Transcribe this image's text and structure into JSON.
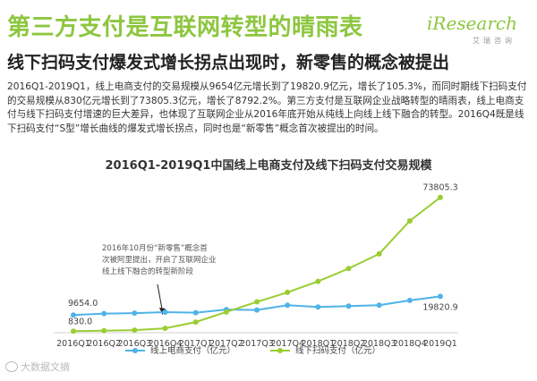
{
  "header": {
    "headline": "第三方支付是互联网转型的晴雨表",
    "subheadline": "线下扫码支付爆发式增长拐点出现时，新零售的概念被提出",
    "logo_word": "iResearch",
    "logo_sub": "艾瑞咨询"
  },
  "paragraph": "2016Q1-2019Q1，线上电商支付的交易规模从9654亿元增长到了19820.9亿元，增长了105.3%，而同时期线下扫码支付的交易规模从830亿元增长到了73805.3亿元，增长了8792.2%。第三方支付是互联网企业战略转型的晴雨表，线上电商支付与线下扫码支付增速的巨大差异，也体现了互联网企业从2016年底开始从纯线上向线上线下融合的转型。2016Q4既是线下扫码支付“S型”增长曲线的爆发式增长拐点，同时也是“新零售”概念首次被提出的时间。",
  "watermark": "大数据文摘",
  "chart_data": {
    "type": "line",
    "title": "2016Q1-2019Q1中国线上电商支付及线下扫码支付交易规模",
    "categories": [
      "2016Q1",
      "2016Q2",
      "2016Q3",
      "2016Q4",
      "2017Q1",
      "2017Q2",
      "2017Q3",
      "2017Q4",
      "2018Q1",
      "2018Q2",
      "2018Q3",
      "2018Q4",
      "2019Q1"
    ],
    "ylim": [
      0,
      80000
    ],
    "grid": false,
    "legend_position": "bottom",
    "series": [
      {
        "name": "线上电商支付（亿元）",
        "color": "#4fb3e8",
        "values": [
          9654.0,
          10400,
          10700,
          11200,
          10900,
          12600,
          12400,
          15000,
          14000,
          14500,
          15000,
          17600,
          19820.9
        ],
        "labels": {
          "0": "9654.0",
          "12": "19820.9"
        }
      },
      {
        "name": "线下扫码支付（亿元）",
        "color": "#9acd32",
        "values": [
          830.0,
          1100,
          1400,
          2400,
          5800,
          11300,
          16800,
          22000,
          28000,
          35000,
          43000,
          61000,
          73805.3
        ],
        "labels": {
          "0": "830.0",
          "12": "73805.3"
        }
      }
    ],
    "annotation": {
      "lines": [
        "2016年10月份“新零售”概念首",
        "次被阿里提出，开启了互联网企业",
        "线上线下融合的转型新阶段"
      ],
      "target_index": 3
    }
  }
}
